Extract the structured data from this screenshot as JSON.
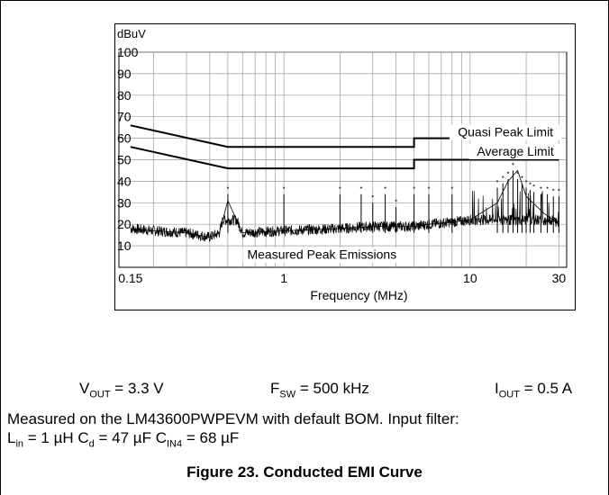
{
  "conditions": {
    "vout": {
      "main": "V",
      "sub": "OUT",
      "rest": " = 3.3 V"
    },
    "fsw": {
      "main": "F",
      "sub": "SW",
      "rest": " = 500 kHz"
    },
    "iout": {
      "main": "I",
      "sub": "OUT",
      "rest": " = 0.5 A"
    }
  },
  "note": {
    "line1": "Measured on the LM43600PWPEVM with default BOM. Input filter:",
    "lin_main": "L",
    "lin_sub": "in",
    "lin_rest": " = 1 µH ",
    "cd_main": "C",
    "cd_sub": "d",
    "cd_rest": " = 47 µF ",
    "cin_main": "C",
    "cin_sub": "IN4",
    "cin_rest": " = 68 µF"
  },
  "caption": "Figure 23. Conducted EMI Curve",
  "chart_data": {
    "type": "line",
    "x_scale": "log",
    "xlabel": "Frequency (MHz)",
    "ylabel": "dBuV",
    "xlim": [
      0.13,
      33
    ],
    "ylim": [
      0,
      100
    ],
    "x_ticks": [
      0.15,
      1,
      10,
      30
    ],
    "x_tick_labels": [
      "0.15",
      "1",
      "10",
      "30"
    ],
    "y_ticks": [
      10,
      20,
      30,
      40,
      50,
      60,
      70,
      80,
      90,
      100
    ],
    "grid": true,
    "series": [
      {
        "name": "Quasi Peak Limit",
        "color": "#000000",
        "x": [
          0.15,
          0.5,
          0.5,
          5,
          5,
          30
        ],
        "y": [
          66,
          56,
          56,
          56,
          60,
          60
        ]
      },
      {
        "name": "Average Limit",
        "color": "#000000",
        "x": [
          0.15,
          0.5,
          0.5,
          5,
          5,
          30
        ],
        "y": [
          56,
          46,
          46,
          46,
          50,
          50
        ]
      },
      {
        "name": "Measured Peak Emissions",
        "color": "#000000",
        "x": [
          0.15,
          0.2,
          0.3,
          0.4,
          0.45,
          0.5,
          0.6,
          1,
          2,
          3,
          4,
          5,
          6,
          8,
          10,
          14,
          16,
          18,
          20,
          25,
          30
        ],
        "y": [
          18,
          17,
          16,
          14,
          16,
          31,
          16,
          17,
          18,
          19,
          19,
          19,
          20,
          21,
          22,
          30,
          40,
          45,
          33,
          25,
          20
        ]
      }
    ],
    "peak_markers": {
      "x": [
        0.5,
        1,
        2,
        2.6,
        3,
        3.5,
        4,
        5,
        6,
        8,
        14,
        15,
        16,
        17,
        18,
        19,
        20,
        21,
        22,
        24,
        26,
        28,
        30
      ],
      "y": [
        37,
        37,
        37,
        37,
        33,
        37,
        31,
        37,
        37,
        37,
        40,
        42,
        44,
        48,
        44,
        42,
        40,
        39,
        38,
        37,
        37,
        36,
        36
      ]
    },
    "annotations": [
      "Quasi Peak Limit",
      "Average Limit",
      "Measured Peak Emissions"
    ]
  }
}
